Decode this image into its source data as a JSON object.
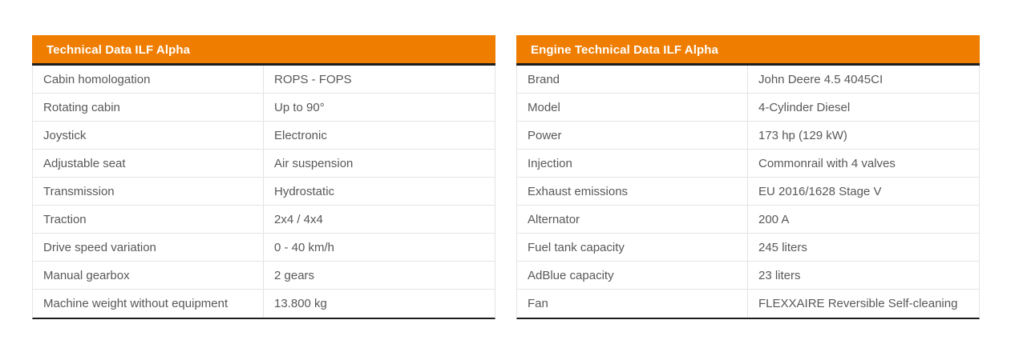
{
  "colors": {
    "accent_orange": "#ef7d00",
    "dark_border": "#1d1d1b",
    "row_border": "#e4e4e4",
    "cell_text": "#58585a",
    "header_text": "#ffffff",
    "page_background": "#ffffff"
  },
  "tables": [
    {
      "title": "Technical Data ILF Alpha",
      "rows": [
        {
          "label": "Cabin homologation",
          "value": "ROPS - FOPS"
        },
        {
          "label": "Rotating cabin",
          "value": "Up to 90°"
        },
        {
          "label": "Joystick",
          "value": "Electronic"
        },
        {
          "label": "Adjustable seat",
          "value": "Air suspension"
        },
        {
          "label": "Transmission",
          "value": "Hydrostatic"
        },
        {
          "label": "Traction",
          "value": "2x4 / 4x4"
        },
        {
          "label": "Drive speed variation",
          "value": "0 - 40 km/h"
        },
        {
          "label": "Manual gearbox",
          "value": "2 gears"
        },
        {
          "label": "Machine weight without equipment",
          "value": "13.800 kg"
        }
      ]
    },
    {
      "title": "Engine Technical Data ILF Alpha",
      "rows": [
        {
          "label": "Brand",
          "value": "John Deere 4.5 4045CI"
        },
        {
          "label": "Model",
          "value": "4-Cylinder Diesel"
        },
        {
          "label": "Power",
          "value": "173 hp (129 kW)"
        },
        {
          "label": "Injection",
          "value": "Commonrail with 4 valves"
        },
        {
          "label": "Exhaust emissions",
          "value": "EU 2016/1628 Stage V"
        },
        {
          "label": "Alternator",
          "value": "200 A"
        },
        {
          "label": "Fuel tank capacity",
          "value": "245 liters"
        },
        {
          "label": "AdBlue capacity",
          "value": "23 liters"
        },
        {
          "label": "Fan",
          "value": "FLEXXAIRE Reversible Self-cleaning"
        }
      ]
    }
  ]
}
